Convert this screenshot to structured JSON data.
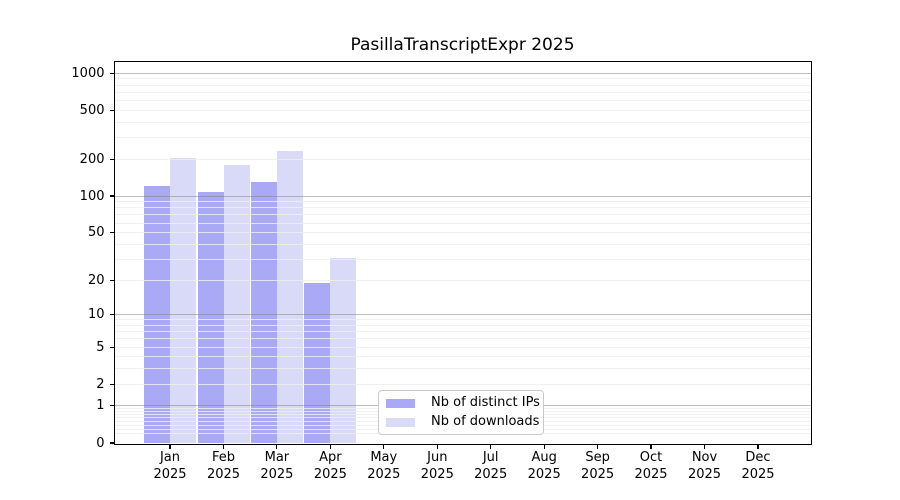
{
  "title": "PasillaTranscriptExpr 2025",
  "chart_data": {
    "type": "bar",
    "title": "PasillaTranscriptExpr 2025",
    "categories": [
      "Jan 2025",
      "Feb 2025",
      "Mar 2025",
      "Apr 2025",
      "May 2025",
      "Jun 2025",
      "Jul 2025",
      "Aug 2025",
      "Sep 2025",
      "Oct 2025",
      "Nov 2025",
      "Dec 2025"
    ],
    "series": [
      {
        "name": "Nb of distinct IPs",
        "color": "#a9a9f6",
        "values": [
          120,
          108,
          130,
          19,
          0,
          0,
          0,
          0,
          0,
          0,
          0,
          0
        ]
      },
      {
        "name": "Nb of downloads",
        "color": "#d9d9f8",
        "values": [
          205,
          180,
          235,
          31,
          0,
          0,
          0,
          0,
          0,
          0,
          0,
          0
        ]
      }
    ],
    "y_scale": "log1p",
    "y_ticks": [
      0,
      1,
      2,
      5,
      10,
      20,
      50,
      100,
      200,
      500,
      1000
    ],
    "ylim": [
      0,
      1000
    ],
    "xlabel": "",
    "ylabel": "",
    "grid": "horizontal major+minor, drawn over bars",
    "legend_position": "inside lower-center",
    "colors": {
      "axis": "#000000",
      "major_grid": "#c6c6c6",
      "minor_grid": "#f1f1f1",
      "background": "#ffffff",
      "legend_border": "#c9c9c9"
    }
  }
}
